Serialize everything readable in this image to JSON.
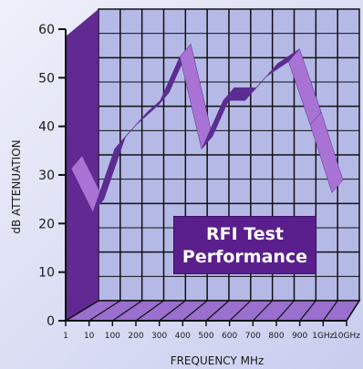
{
  "chart_data": {
    "type": "line",
    "title_lines": [
      "RFI Test",
      "Performance"
    ],
    "xlabel": "FREQUENCY MHz",
    "ylabel": "dB ATTENUATION",
    "categories": [
      "1",
      "10",
      "100",
      "200",
      "300",
      "400",
      "500",
      "600",
      "700",
      "800",
      "900",
      "1GHz",
      "10GHz"
    ],
    "ylim": [
      0,
      60
    ],
    "yticks": [
      0,
      10,
      20,
      30,
      40,
      50,
      60
    ],
    "series": [
      {
        "values": [
          31,
          22,
          35,
          40,
          44,
          54,
          35,
          45,
          45,
          50,
          53,
          40,
          26
        ]
      }
    ],
    "colors": {
      "ribbon_top": "#a873d4",
      "ribbon_dark": "#5b2c91",
      "grid_fill": "#b5b9e6",
      "grid_line": "#111111",
      "floor": "#9a6fce",
      "wall": "#5a1f8c",
      "title_bg": "#5a1f8c"
    }
  }
}
